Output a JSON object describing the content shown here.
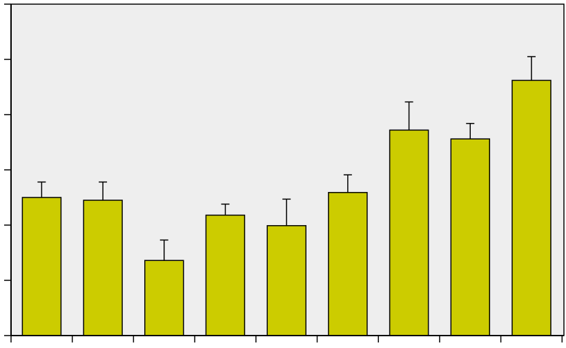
{
  "chart_data": {
    "type": "bar",
    "categories": [
      "",
      "",
      "",
      "",
      "",
      "",
      "",
      "",
      ""
    ],
    "values": [
      2.5,
      2.45,
      1.36,
      2.18,
      1.99,
      2.59,
      3.72,
      3.56,
      4.62
    ],
    "error_upper": [
      2.78,
      2.78,
      1.73,
      2.38,
      2.47,
      2.91,
      4.23,
      3.84,
      5.05
    ],
    "title": "",
    "xlabel": "",
    "ylabel": "",
    "ylim": [
      0,
      6
    ],
    "yticks": [
      0,
      1,
      2,
      3,
      4,
      5,
      6
    ],
    "grid": false,
    "legend": "none",
    "colors": {
      "bar_fill": "#cccc00",
      "plot_background": "#eeeeee",
      "axis": "#000000"
    }
  }
}
